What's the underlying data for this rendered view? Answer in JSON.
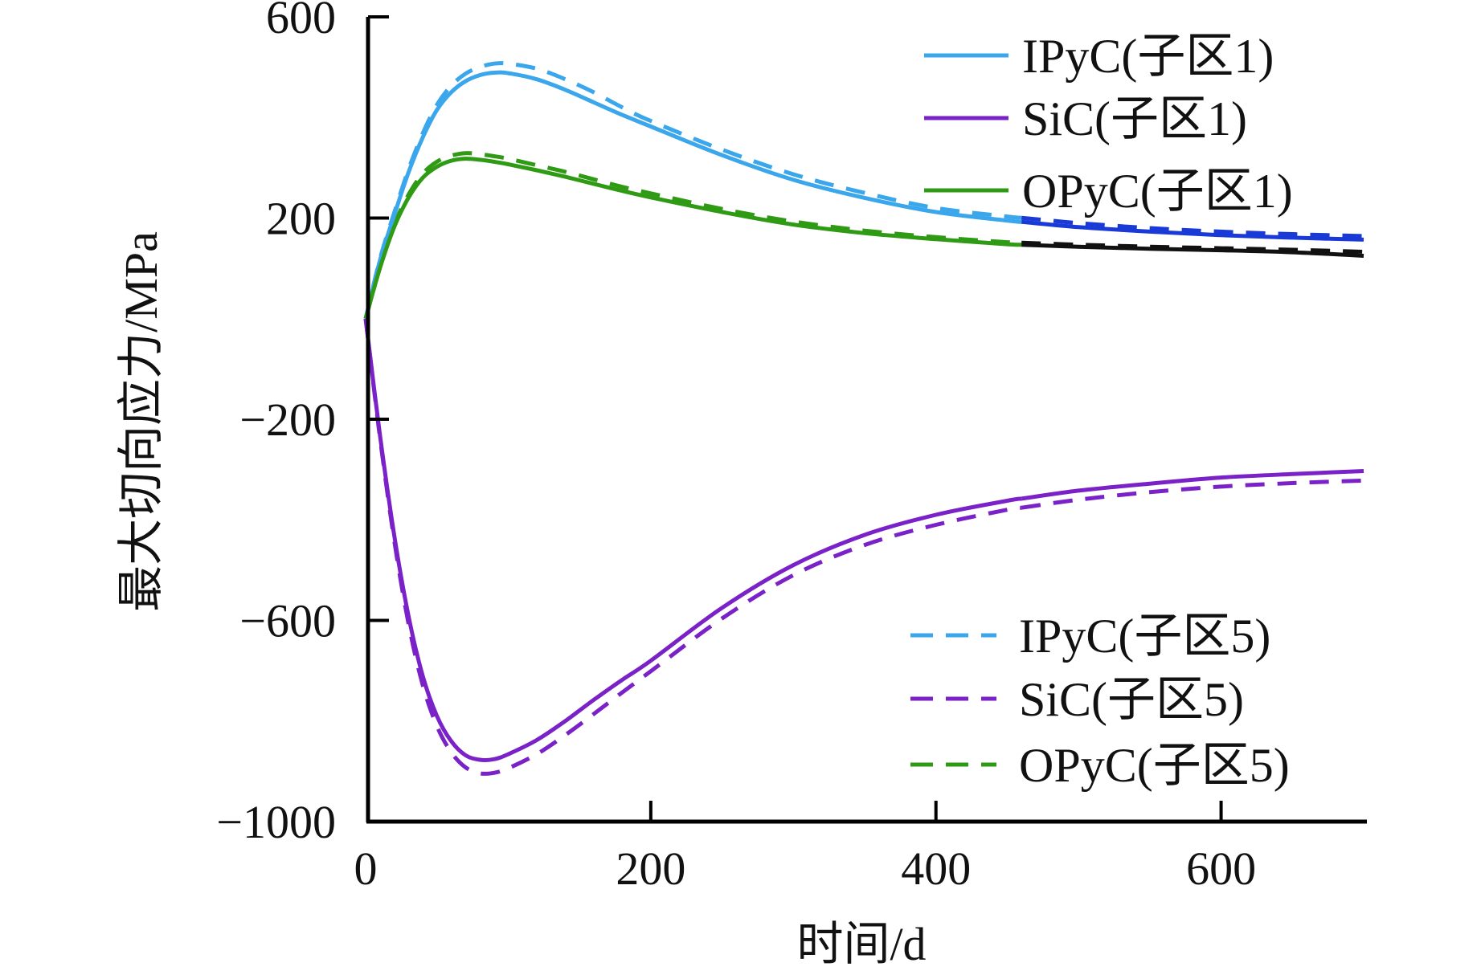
{
  "chart_data": {
    "type": "line",
    "title": "",
    "xlabel": "时间/d",
    "ylabel": "最大切向应力/MPa",
    "xlim": [
      0,
      700
    ],
    "ylim": [
      -1000,
      600
    ],
    "xticks": [
      0,
      200,
      400,
      600
    ],
    "yticks": [
      600,
      200,
      -200,
      -600,
      -1000
    ],
    "xtick_labels": [
      "0",
      "200",
      "400",
      "600"
    ],
    "ytick_labels": [
      "600",
      "200",
      "−200",
      "−600",
      "−1000"
    ],
    "grid": false,
    "x": [
      0,
      10,
      20,
      30,
      40,
      50,
      60,
      70,
      80,
      90,
      100,
      120,
      140,
      160,
      180,
      200,
      250,
      300,
      350,
      400,
      450,
      500,
      550,
      600,
      650,
      700
    ],
    "color_switch_x": 460,
    "series": [
      {
        "name": "IPyC(子区1)",
        "style": "solid",
        "color": "#3aa6ec",
        "late_color": "#1a3ad8",
        "values": [
          0,
          115,
          205,
          290,
          360,
          415,
          450,
          472,
          484,
          489,
          488,
          476,
          455,
          430,
          405,
          382,
          325,
          276,
          240,
          212,
          195,
          182,
          173,
          166,
          161,
          157
        ]
      },
      {
        "name": "SiC(子区1)",
        "style": "solid",
        "color": "#7a22c8",
        "late_color": "#7a22c8",
        "values": [
          0,
          -230,
          -430,
          -590,
          -710,
          -790,
          -840,
          -868,
          -877,
          -876,
          -866,
          -838,
          -800,
          -758,
          -718,
          -680,
          -575,
          -490,
          -430,
          -390,
          -362,
          -342,
          -328,
          -316,
          -309,
          -303
        ]
      },
      {
        "name": "OPyC(子区1)",
        "style": "solid",
        "color": "#2f9a14",
        "late_color": "#111111",
        "values": [
          0,
          100,
          182,
          240,
          280,
          302,
          314,
          318,
          316,
          312,
          307,
          295,
          282,
          268,
          254,
          241,
          212,
          187,
          170,
          158,
          148,
          143,
          139,
          136,
          132,
          125
        ]
      },
      {
        "name": "IPyC(子区5)",
        "style": "dashed",
        "color": "#3aa6ec",
        "late_color": "#1a3ad8",
        "values": [
          0,
          118,
          210,
          296,
          368,
          425,
          463,
          487,
          500,
          507,
          507,
          497,
          476,
          450,
          420,
          393,
          336,
          287,
          250,
          220,
          203,
          190,
          180,
          173,
          168,
          164
        ]
      },
      {
        "name": "SiC(子区5)",
        "style": "dashed",
        "color": "#7a22c8",
        "late_color": "#7a22c8",
        "values": [
          0,
          -235,
          -440,
          -605,
          -728,
          -810,
          -862,
          -892,
          -904,
          -903,
          -894,
          -866,
          -828,
          -786,
          -743,
          -701,
          -596,
          -510,
          -450,
          -410,
          -380,
          -360,
          -345,
          -334,
          -327,
          -322
        ]
      },
      {
        "name": "OPyC(子区5)",
        "style": "dashed",
        "color": "#2f9a14",
        "late_color": "#111111",
        "values": [
          0,
          102,
          186,
          246,
          288,
          312,
          324,
          329,
          327,
          323,
          318,
          305,
          292,
          277,
          262,
          249,
          218,
          193,
          175,
          162,
          152,
          147,
          143,
          140,
          137,
          133
        ]
      }
    ],
    "legends": [
      {
        "placement": "top-right",
        "entries": [
          "IPyC(子区1)",
          "SiC(子区1)",
          "OPyC(子区1)"
        ]
      },
      {
        "placement": "bottom-right",
        "entries": [
          "IPyC(子区5)",
          "SiC(子区5)",
          "OPyC(子区5)"
        ]
      }
    ]
  }
}
